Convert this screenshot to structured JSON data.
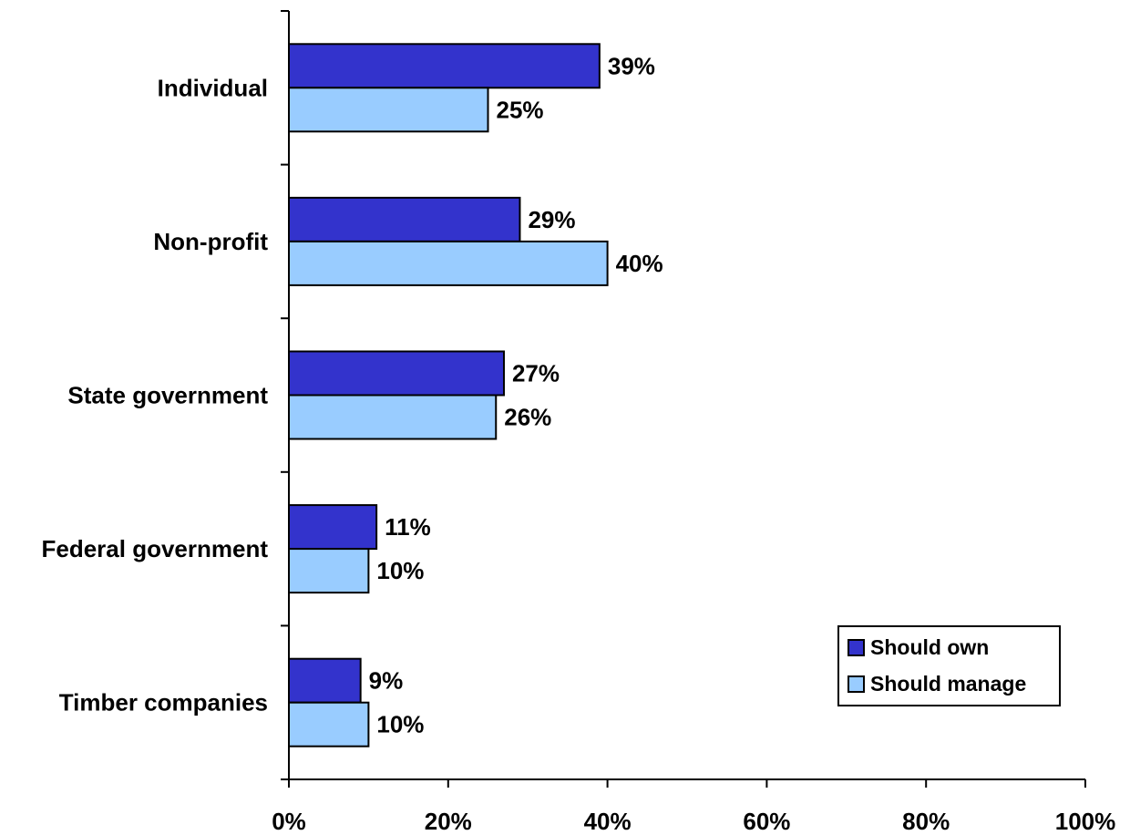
{
  "chart_data": {
    "type": "bar",
    "orientation": "horizontal",
    "categories": [
      "Individual",
      "Non-profit",
      "State government",
      "Federal government",
      "Timber companies"
    ],
    "series": [
      {
        "name": "Should own",
        "color": "#3333cc",
        "values": [
          39,
          29,
          27,
          11,
          9
        ]
      },
      {
        "name": "Should manage",
        "color": "#99ccff",
        "values": [
          25,
          40,
          26,
          10,
          10
        ]
      }
    ],
    "data_labels": [
      [
        "39%",
        "29%",
        "27%",
        "11%",
        "9%"
      ],
      [
        "25%",
        "40%",
        "26%",
        "10%",
        "10%"
      ]
    ],
    "xlim": [
      0,
      100
    ],
    "x_ticks": [
      0,
      20,
      40,
      60,
      80,
      100
    ],
    "x_tick_labels": [
      "0%",
      "20%",
      "40%",
      "60%",
      "80%",
      "100%"
    ],
    "title": "",
    "xlabel": "",
    "ylabel": "",
    "grid": false,
    "legend_position": "bottom-right"
  }
}
